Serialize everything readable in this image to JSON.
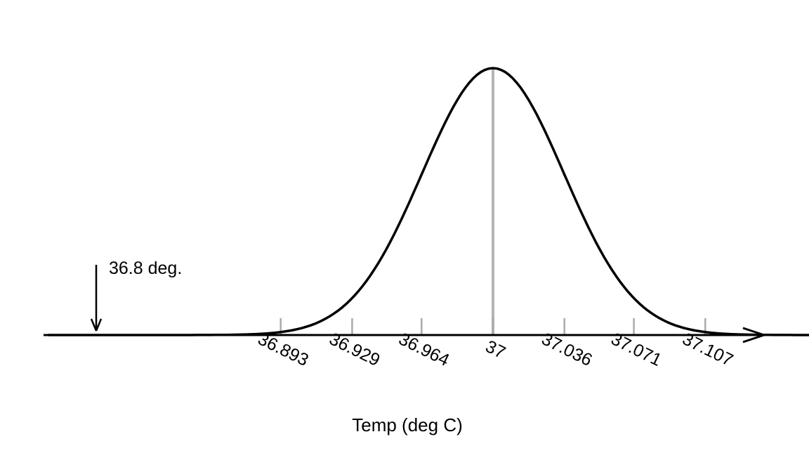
{
  "chart_data": {
    "type": "line",
    "subtype": "normal-density-curve",
    "title": "",
    "xlabel": "Temp (deg C)",
    "ylabel": "",
    "grid": false,
    "legend": false,
    "distribution": {
      "shape": "normal",
      "mean": 37,
      "sd": 0.0357
    },
    "x_ticks": [
      {
        "value": 36.893,
        "label": "36.893"
      },
      {
        "value": 36.929,
        "label": "36.929"
      },
      {
        "value": 36.964,
        "label": "36.964"
      },
      {
        "value": 37,
        "label": "37"
      },
      {
        "value": 37.036,
        "label": "37.036"
      },
      {
        "value": 37.071,
        "label": "37.071"
      },
      {
        "value": 37.107,
        "label": "37.107"
      }
    ],
    "axis_range": [
      36.77,
      37.14
    ],
    "annotation": {
      "label": "36.8 deg.",
      "value": 36.8,
      "style": "downward-arrow-to-axis"
    },
    "mean_reference_line": {
      "value": 37,
      "from": "peak",
      "to": "axis"
    },
    "colors": {
      "curve": "#000000",
      "axis": "#000000",
      "tick": "#aaaaaa",
      "center_line": "#b5b5b5",
      "annotation": "#000000",
      "background": "#ffffff"
    }
  }
}
